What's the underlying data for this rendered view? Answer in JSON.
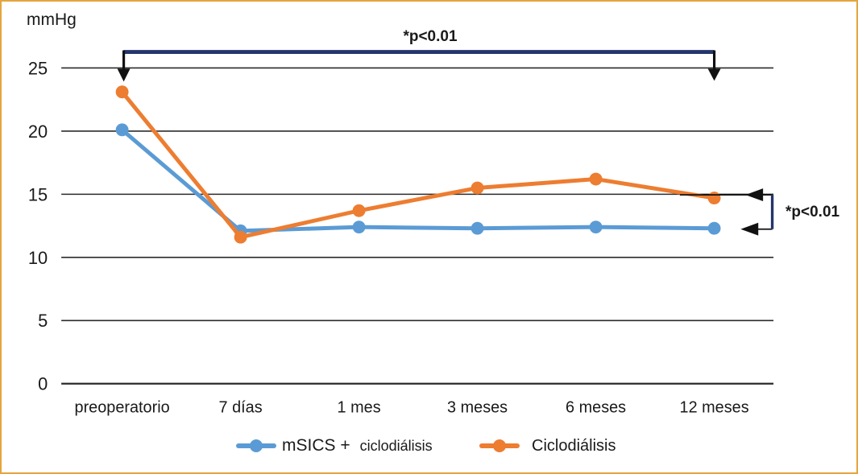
{
  "figure": {
    "units_label": "mmHg"
  },
  "colors": {
    "frame_border": "#E5A43F",
    "background": "#FFFFFF",
    "grid_line": "#2B2B2B",
    "text": "#1A1A1A",
    "series_msics": "#5B9BD5",
    "series_ciclo": "#ED7D31",
    "bracket_navy": "#24356B",
    "bracket_black": "#111111"
  },
  "chart_data": {
    "type": "line",
    "title": "",
    "categories": [
      "preoperatorio",
      "7 días",
      "1 mes",
      "3 meses",
      "6 meses",
      "12 meses"
    ],
    "series": [
      {
        "name": "mSICS + ciclodiálisis",
        "color_key": "series_msics",
        "values": [
          20.1,
          12.1,
          12.4,
          12.3,
          12.4,
          12.3
        ]
      },
      {
        "name": "Ciclodiálisis",
        "color_key": "series_ciclo",
        "values": [
          23.1,
          11.6,
          13.7,
          15.5,
          16.2,
          14.7
        ]
      }
    ],
    "xlabel": "",
    "ylabel": "mmHg",
    "ylim": [
      0,
      25
    ],
    "yticks": [
      0,
      5,
      10,
      15,
      20,
      25
    ],
    "grid": "horizontal-only",
    "legend_position": "bottom"
  },
  "annotations": {
    "top_bracket": {
      "label": "*p<0.01",
      "from": "preoperatorio",
      "to": "12 meses"
    },
    "right_bracket": {
      "label": "*p<0.01",
      "at": "12 meses"
    }
  },
  "legend": {
    "items": [
      {
        "label_primary": "mSICS +",
        "label_secondary": "ciclodiálisis",
        "color_key": "series_msics"
      },
      {
        "label_primary": "Ciclodiálisis",
        "label_secondary": "",
        "color_key": "series_ciclo"
      }
    ]
  }
}
